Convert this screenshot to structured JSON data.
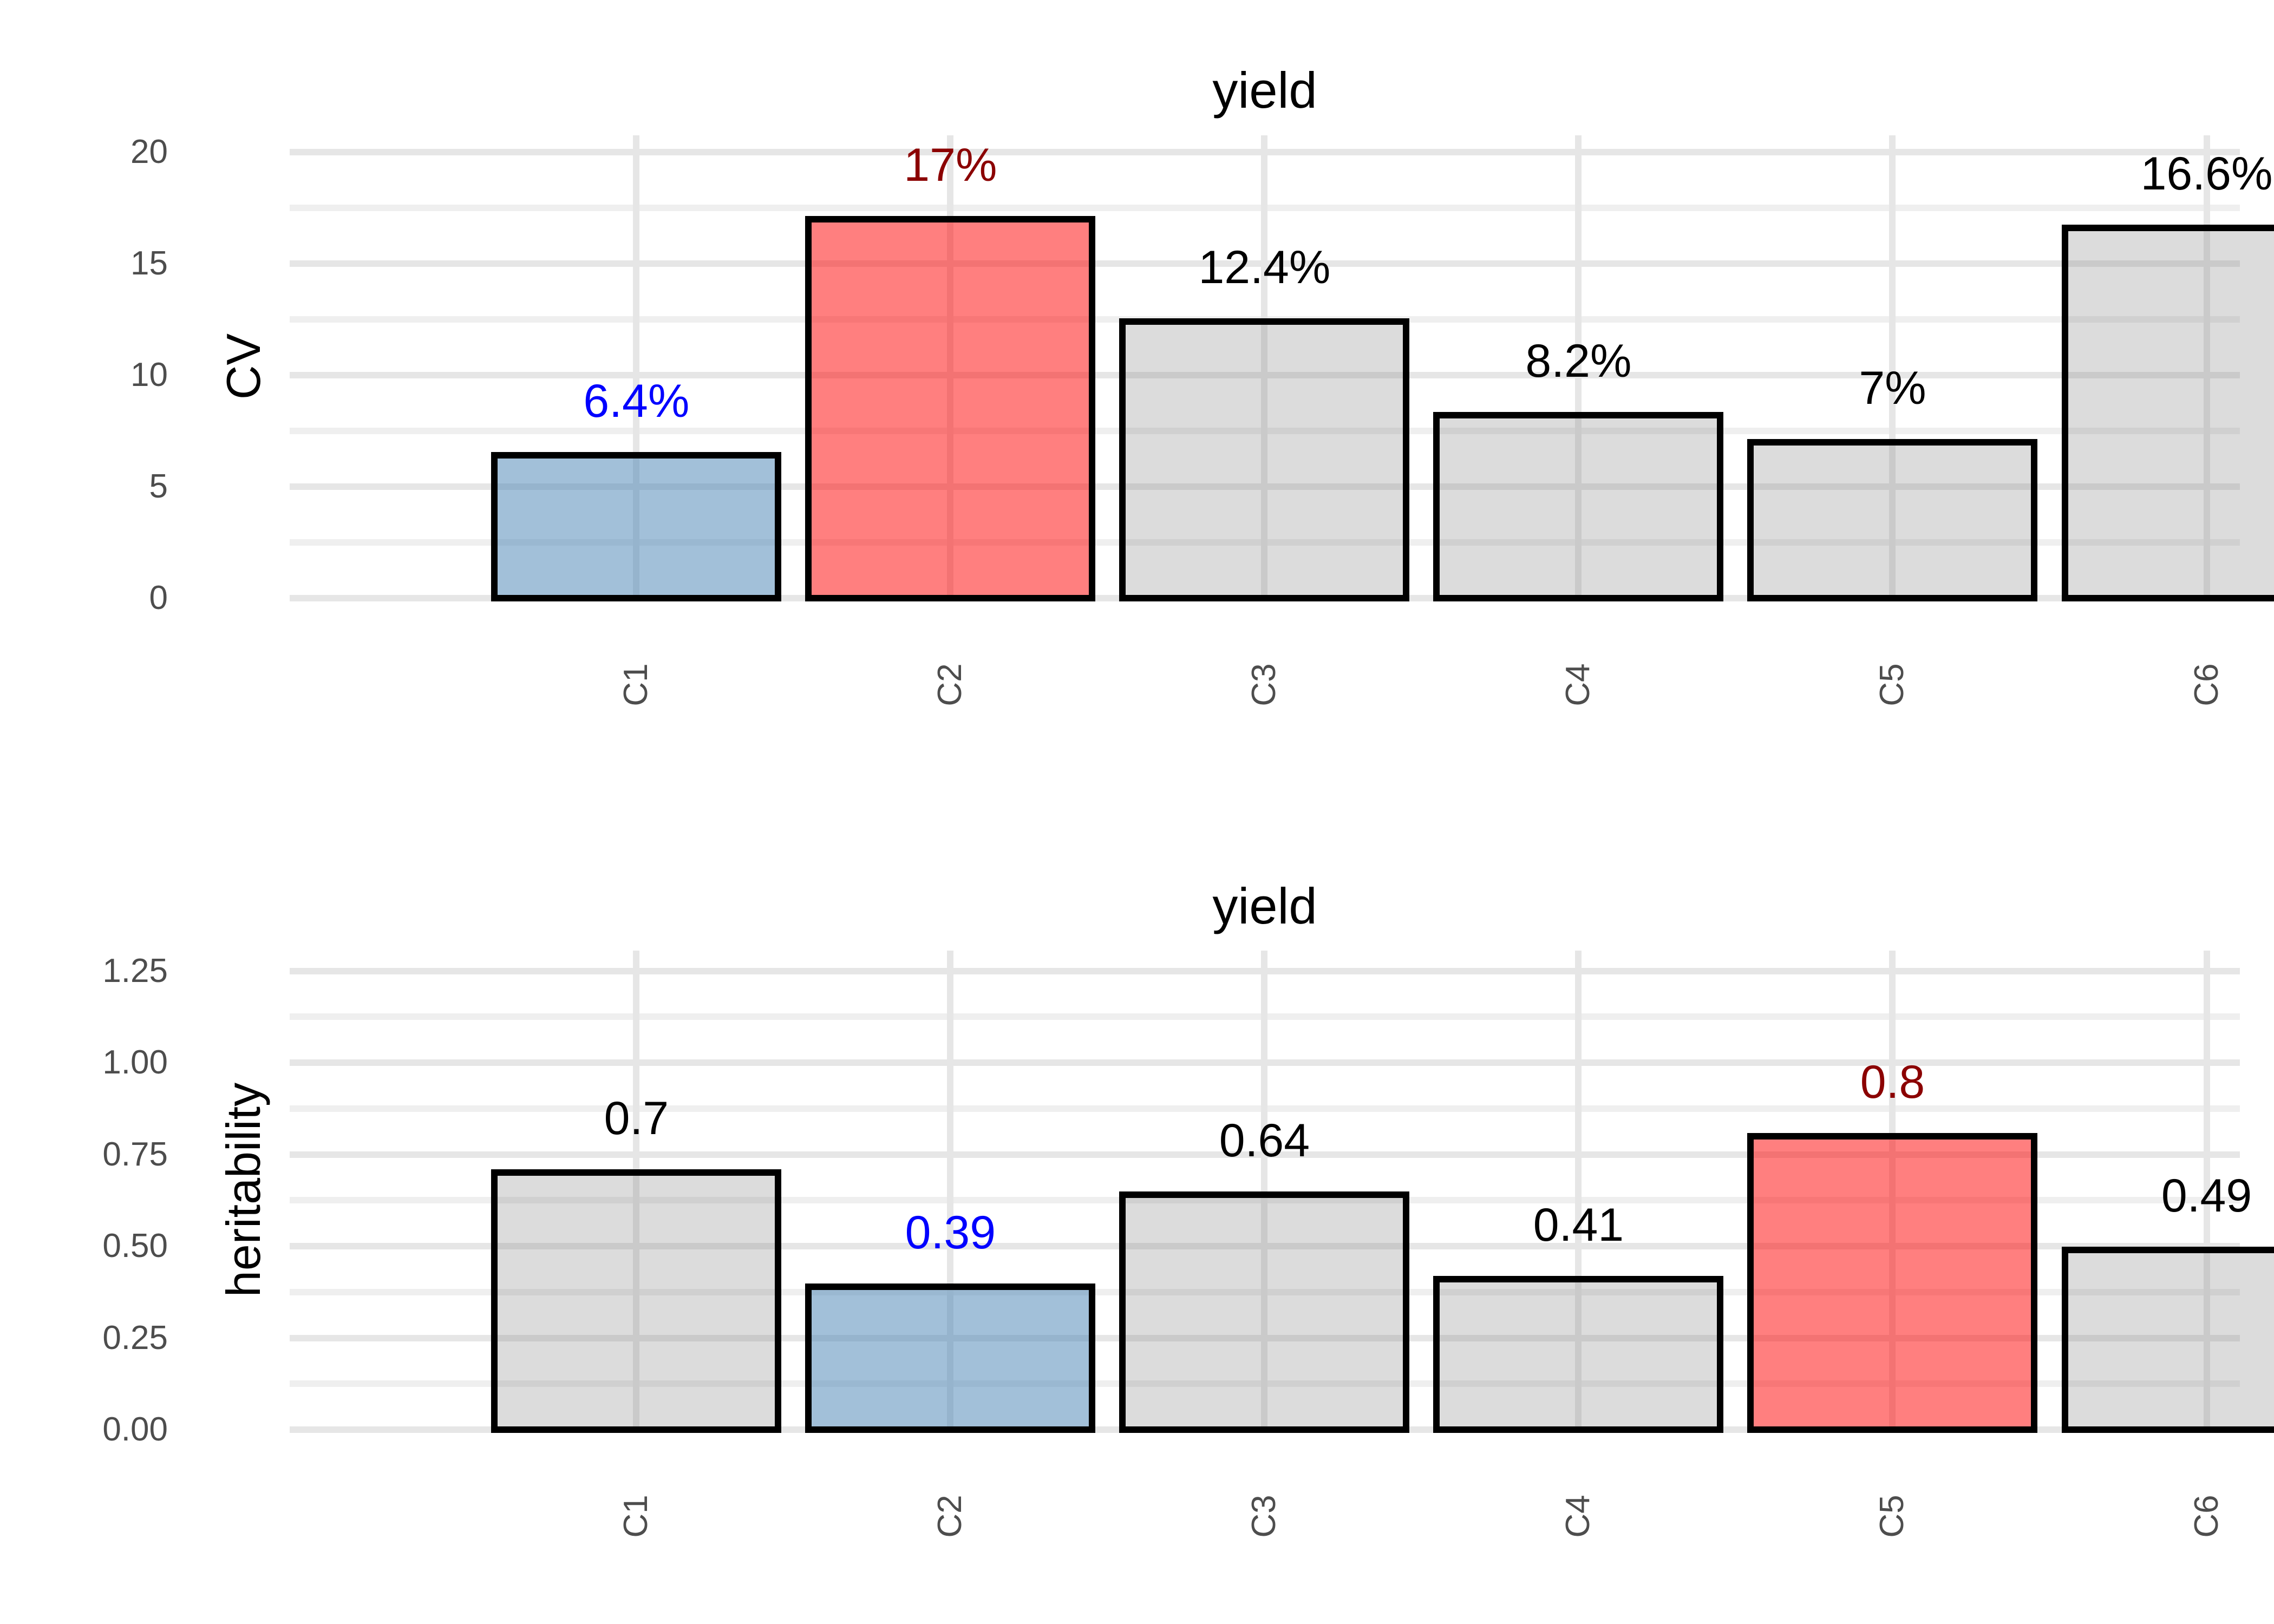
{
  "figure_background": "#FFFFFF",
  "colors": {
    "grid_major": "#E6E6E6",
    "grid_minor": "#EFEFEF",
    "tick_text": "#4D4D4D",
    "axis_title_text": "#000000",
    "title_text": "#000000",
    "bar_border": "#000000",
    "highlight_low_fill": "rgba(70,130,180,0.50)",
    "highlight_high_fill": "rgba(255,0,0,0.50)",
    "default_fill": "rgba(128,128,128,0.28)",
    "label_blue": "#0000FF",
    "label_darkred": "#8B0000",
    "label_black": "#000000"
  },
  "chart_data": [
    {
      "type": "bar",
      "title": "yield",
      "xlabel": "",
      "ylabel": "CV",
      "categories": [
        "C1",
        "C2",
        "C3",
        "C4",
        "C5",
        "C6"
      ],
      "values": [
        6.4,
        17,
        12.4,
        8.2,
        7,
        16.6
      ],
      "bar_labels": [
        "6.4%",
        "17%",
        "12.4%",
        "8.2%",
        "7%",
        "16.6%"
      ],
      "bar_label_roles": [
        "blue",
        "darkred",
        "black",
        "black",
        "black",
        "black"
      ],
      "bar_fill_roles": [
        "low",
        "high",
        "default",
        "default",
        "default",
        "default"
      ],
      "y_ticks": {
        "values": [
          0,
          5,
          10,
          15,
          20
        ],
        "labels": [
          "0",
          "5",
          "10",
          "15",
          "20"
        ]
      },
      "y_minor_ticks": [
        2.5,
        7.5,
        12.5,
        17.5
      ],
      "ylim": [
        0,
        20.75
      ],
      "grid": "horizontal major+minor, vertical at category centers",
      "legend": "none"
    },
    {
      "type": "bar",
      "title": "yield",
      "xlabel": "",
      "ylabel": "heritability",
      "categories": [
        "C1",
        "C2",
        "C3",
        "C4",
        "C5",
        "C6"
      ],
      "values": [
        0.7,
        0.39,
        0.64,
        0.41,
        0.8,
        0.49
      ],
      "bar_labels": [
        "0.7",
        "0.39",
        "0.64",
        "0.41",
        "0.8",
        "0.49"
      ],
      "bar_label_roles": [
        "black",
        "blue",
        "black",
        "black",
        "darkred",
        "black"
      ],
      "bar_fill_roles": [
        "default",
        "low",
        "default",
        "default",
        "high",
        "default"
      ],
      "y_ticks": {
        "values": [
          0,
          0.25,
          0.5,
          0.75,
          1,
          1.25
        ],
        "labels": [
          "0.00",
          "0.25",
          "0.50",
          "0.75",
          "1.00",
          "1.25"
        ]
      },
      "y_minor_ticks": [
        0.125,
        0.375,
        0.625,
        0.875,
        1.125
      ],
      "ylim": [
        0,
        1.305
      ],
      "grid": "horizontal major+minor, vertical at category centers",
      "legend": "none"
    }
  ]
}
